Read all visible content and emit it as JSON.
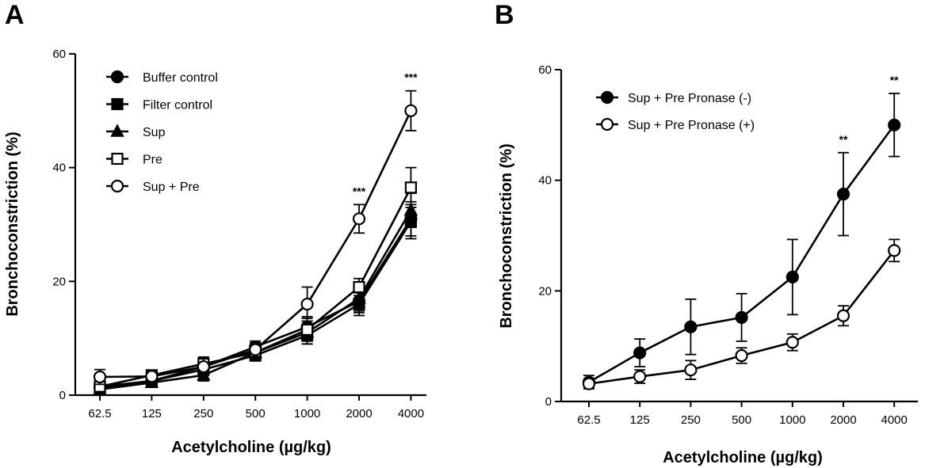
{
  "chart_data": [
    {
      "panel": "A",
      "type": "line",
      "xlabel": "Acetylcholine  (µg/kg)",
      "ylabel": "Bronchoconstriction (%)",
      "categories": [
        "62.5",
        "125",
        "250",
        "500",
        "1000",
        "2000",
        "4000"
      ],
      "ylim": [
        0,
        60
      ],
      "yticks": [
        "0",
        "20",
        "40",
        "60"
      ],
      "legend_position": "top-left",
      "grid": false,
      "series": [
        {
          "name": "Buffer control",
          "marker": "filled-circle",
          "values": [
            1.5,
            2.5,
            5.0,
            8.5,
            12.0,
            16.5,
            31.0
          ],
          "errors": [
            1.0,
            0.8,
            1.2,
            1.0,
            1.8,
            2.0,
            3.0
          ]
        },
        {
          "name": "Filter control",
          "marker": "filled-square",
          "values": [
            1.2,
            2.5,
            4.5,
            7.0,
            10.5,
            16.0,
            30.5
          ],
          "errors": [
            0.8,
            0.8,
            1.0,
            1.0,
            1.5,
            2.0,
            3.0
          ]
        },
        {
          "name": "Sup",
          "marker": "filled-triangle",
          "values": [
            1.0,
            2.2,
            3.5,
            7.5,
            11.0,
            17.0,
            32.5
          ],
          "errors": [
            0.8,
            0.8,
            1.0,
            1.2,
            2.0,
            2.2,
            3.0
          ]
        },
        {
          "name": "Pre",
          "marker": "open-square",
          "values": [
            1.5,
            3.5,
            5.5,
            7.5,
            11.5,
            19.0,
            36.5
          ],
          "errors": [
            1.0,
            0.8,
            1.2,
            1.2,
            2.0,
            1.5,
            3.5
          ]
        },
        {
          "name": "Sup + Pre",
          "marker": "open-circle",
          "values": [
            3.2,
            3.3,
            5.0,
            8.0,
            16.0,
            31.0,
            50.0
          ],
          "errors": [
            1.3,
            1.0,
            1.5,
            1.2,
            3.0,
            2.5,
            3.5
          ]
        }
      ],
      "annotations": [
        {
          "text": "***",
          "category": "2000"
        },
        {
          "text": "***",
          "category": "4000"
        }
      ]
    },
    {
      "panel": "B",
      "type": "line",
      "xlabel": "Acetylcholine  (µg/kg)",
      "ylabel": "Bronchoconstriction (%)",
      "categories": [
        "62.5",
        "125",
        "250",
        "500",
        "1000",
        "2000",
        "4000"
      ],
      "ylim": [
        0,
        60
      ],
      "yticks": [
        "0",
        "20",
        "40",
        "60"
      ],
      "legend_position": "top-left",
      "grid": false,
      "series": [
        {
          "name": "Sup + Pre Pronase (-)",
          "marker": "filled-circle",
          "values": [
            3.5,
            8.8,
            13.5,
            15.2,
            22.5,
            37.5,
            50.0
          ],
          "errors": [
            1.2,
            2.5,
            5.0,
            4.3,
            6.8,
            7.5,
            5.7
          ]
        },
        {
          "name": "Sup + Pre Pronase (+)",
          "marker": "open-circle",
          "values": [
            3.2,
            4.5,
            5.7,
            8.3,
            10.7,
            15.5,
            27.3
          ],
          "errors": [
            0.8,
            1.2,
            1.7,
            1.4,
            1.5,
            1.8,
            2.0
          ]
        }
      ],
      "annotations": [
        {
          "text": "**",
          "category": "2000"
        },
        {
          "text": "**",
          "category": "4000"
        }
      ]
    }
  ]
}
